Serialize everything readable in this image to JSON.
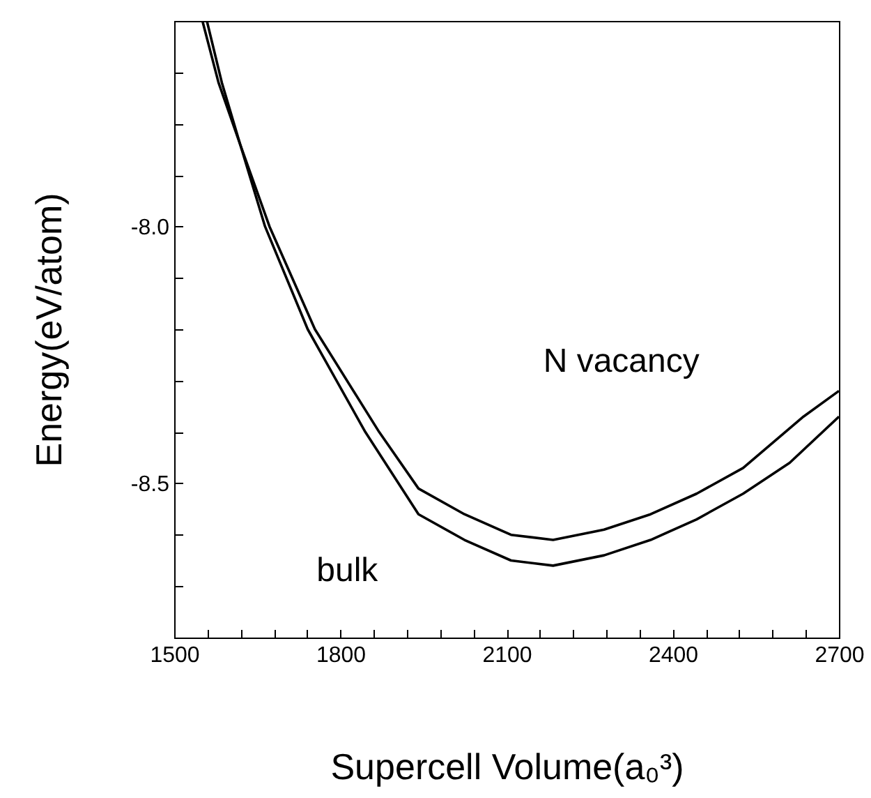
{
  "chart_data": {
    "type": "line",
    "xlabel": "Supercell Volume(a₀³)",
    "ylabel": "Energy(eV/atom)",
    "xlim": [
      1500,
      2700
    ],
    "ylim": [
      -8.8,
      -7.6
    ],
    "xticks": [
      1500,
      {
        "value": 1560,
        "label": null
      },
      {
        "value": 1620,
        "label": null
      },
      {
        "value": 1680,
        "label": null
      },
      {
        "value": 1740,
        "label": null
      },
      1800,
      {
        "value": 1860,
        "label": null
      },
      {
        "value": 1920,
        "label": null
      },
      {
        "value": 1980,
        "label": null
      },
      {
        "value": 2040,
        "label": null
      },
      2100,
      {
        "value": 2160,
        "label": null
      },
      {
        "value": 2220,
        "label": null
      },
      {
        "value": 2280,
        "label": null
      },
      {
        "value": 2340,
        "label": null
      },
      2400,
      {
        "value": 2460,
        "label": null
      },
      {
        "value": 2520,
        "label": null
      },
      {
        "value": 2580,
        "label": null
      },
      {
        "value": 2640,
        "label": null
      },
      2700
    ],
    "yticks": [
      {
        "value": -8.7,
        "label": null
      },
      {
        "value": -8.6,
        "label": null
      },
      {
        "value": -8.5,
        "label": "-8.5"
      },
      {
        "value": -8.4,
        "label": null
      },
      {
        "value": -8.3,
        "label": null
      },
      {
        "value": -8.2,
        "label": null
      },
      {
        "value": -8.1,
        "label": null
      },
      {
        "value": -8.0,
        "label": "-8.0"
      },
      {
        "value": -7.9,
        "label": null
      },
      {
        "value": -7.8,
        "label": null
      },
      {
        "value": -7.7,
        "label": null
      }
    ],
    "grid": false,
    "marker": "none",
    "line_style": "solid",
    "series": [
      {
        "name": "bulk",
        "color": "#000000",
        "x": [
          1559,
          1586,
          1619,
          1664,
          1741,
          1845,
          1941,
          2024,
          2108,
          2184,
          2276,
          2360,
          2443,
          2527,
          2611,
          2700
        ],
        "values": [
          -7.6,
          -7.72,
          -7.84,
          -8.0,
          -8.2,
          -8.4,
          -8.56,
          -8.61,
          -8.65,
          -8.66,
          -8.64,
          -8.61,
          -8.57,
          -8.52,
          -8.46,
          -8.37
        ]
      },
      {
        "name": "N vacancy",
        "color": "#000000",
        "x": [
          1551,
          1580,
          1619,
          1672,
          1754,
          1870,
          1941,
          2024,
          2108,
          2184,
          2276,
          2360,
          2443,
          2527,
          2636,
          2700
        ],
        "values": [
          -7.6,
          -7.72,
          -7.84,
          -8.0,
          -8.2,
          -8.4,
          -8.51,
          -8.56,
          -8.6,
          -8.61,
          -8.59,
          -8.56,
          -8.52,
          -8.47,
          -8.37,
          -8.32
        ]
      }
    ]
  }
}
